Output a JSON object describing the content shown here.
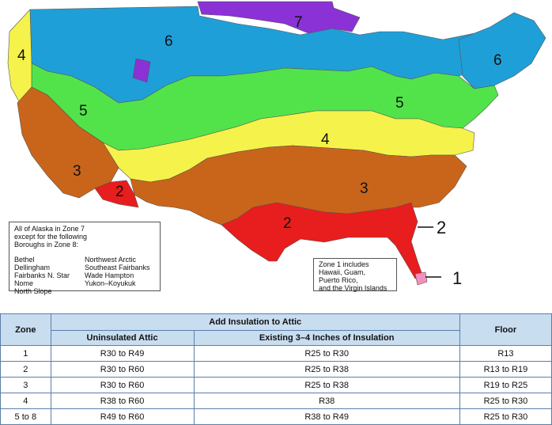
{
  "map": {
    "zone_labels": [
      "7",
      "6",
      "4",
      "5",
      "6",
      "5",
      "4",
      "3",
      "2",
      "3",
      "2"
    ],
    "callouts": [
      "2",
      "1"
    ],
    "colors": {
      "zone1": "#f48fc0",
      "zone2": "#e81d1d",
      "zone3": "#c9651a",
      "zone4": "#f5f24b",
      "zone5": "#52e34a",
      "zone6": "#1f9fd8",
      "zone7": "#8a32d6",
      "zone4_marine": "#f5f24b"
    },
    "alaska_note": {
      "intro": [
        "All of Alaska in Zone 7",
        "except for the following",
        "Boroughs in Zone 8:"
      ],
      "col1": [
        "Bethel",
        "Dellingham",
        "Fairbanks N. Star",
        "Nome",
        "North Slope"
      ],
      "col2": [
        "Northwest Arctic",
        "Southeast Fairbanks",
        "Wade Hampton",
        "Yukon–Koyukuk"
      ]
    },
    "zone1_note": [
      "Zone 1 includes",
      "Hawaii, Guam,",
      "Puerto Rico,",
      "and the Virgin Islands"
    ]
  },
  "table": {
    "zone_header": "Zone",
    "add_header": "Add Insulation to Attic",
    "floor_header": "Floor",
    "uninsulated_header": "Uninsulated Attic",
    "existing_header": "Existing 3–4 Inches of Insulation",
    "rows": [
      {
        "zone": "1",
        "uninsulated": "R30 to R49",
        "existing": "R25 to R30",
        "floor": "R13"
      },
      {
        "zone": "2",
        "uninsulated": "R30 to R60",
        "existing": "R25 to R38",
        "floor": "R13 to R19"
      },
      {
        "zone": "3",
        "uninsulated": "R30 to R60",
        "existing": "R25 to R38",
        "floor": "R19 to R25"
      },
      {
        "zone": "4",
        "uninsulated": "R38 to R60",
        "existing": "R38",
        "floor": "R25 to R30"
      },
      {
        "zone": "5 to 8",
        "uninsulated": "R49 to R60",
        "existing": "R38 to R49",
        "floor": "R25 to R30"
      }
    ]
  }
}
